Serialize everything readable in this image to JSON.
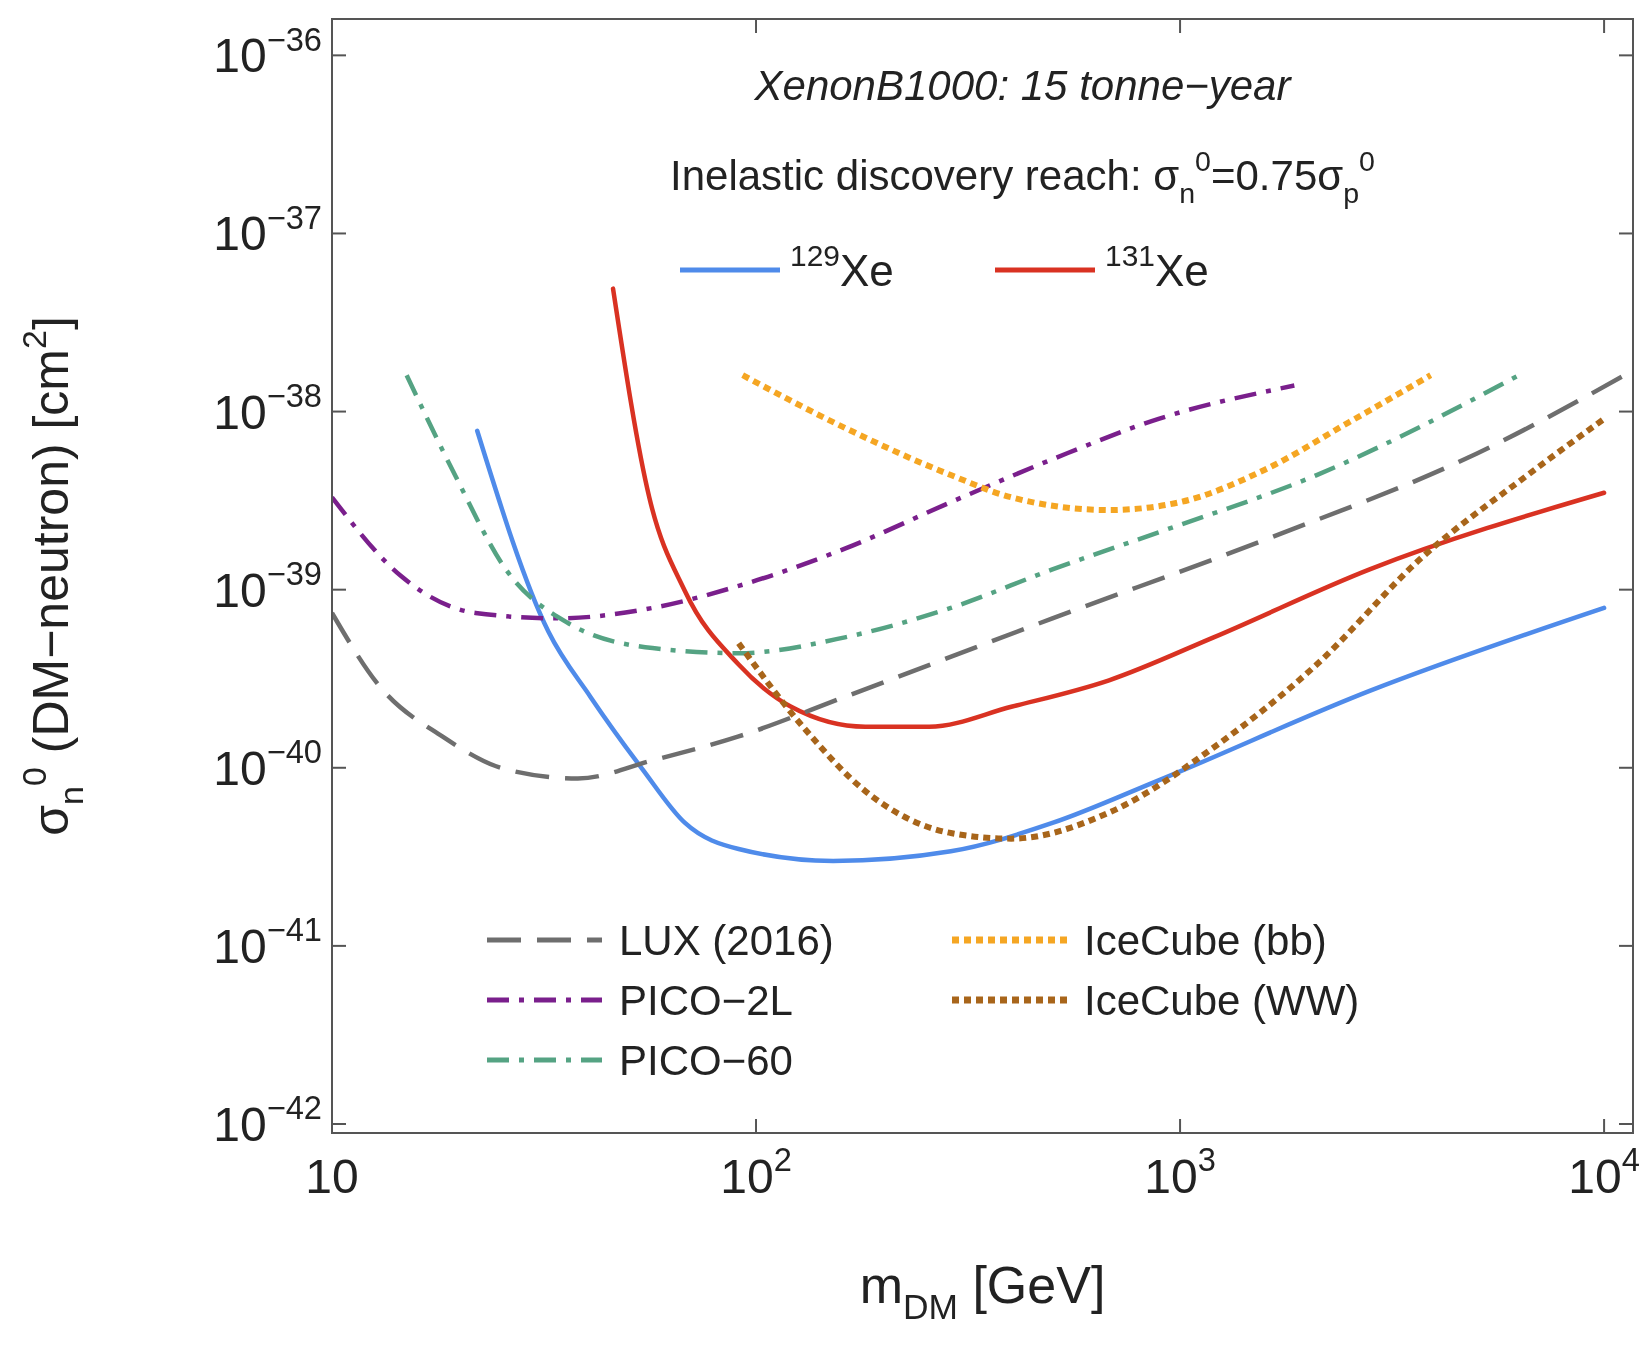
{
  "chart_data": {
    "type": "line",
    "title": "XenonB1000: 15 tonne−year",
    "subtitle": "Inelastic discovery reach: σ$_{n}$$^{0}$=0.75σ$_{p}$$^{0}$",
    "xlabel": "m$_{DM}$ [GeV]",
    "ylabel": "σ$_{n}$$^{0}$ (DM−neutron) [cm$^{2}$]",
    "log": "xy",
    "xlim": [
      10,
      11700
    ],
    "ylim": [
      8.9e-43,
      1.6e-36
    ],
    "xticks": [
      {
        "value": 10,
        "label": "10"
      },
      {
        "value": 100,
        "label": "10$^{2}$"
      },
      {
        "value": 1000,
        "label": "10$^{3}$"
      },
      {
        "value": 10000,
        "label": "10$^{4}$"
      }
    ],
    "yticks": [
      {
        "value": 1e-42,
        "label": "10$^{−42}$"
      },
      {
        "value": 1e-41,
        "label": "10$^{−41}$"
      },
      {
        "value": 1e-40,
        "label": "10$^{−40}$"
      },
      {
        "value": 1e-39,
        "label": "10$^{−39}$"
      },
      {
        "value": 1e-38,
        "label": "10$^{−38}$"
      },
      {
        "value": 1e-37,
        "label": "10$^{−37}$"
      },
      {
        "value": 1e-36,
        "label": "10$^{−36}$"
      }
    ],
    "legend": "bottom left",
    "grid": false,
    "series": [
      {
        "name": "$^{129}$Xe",
        "color": "#4f8bea",
        "line_style": "solid",
        "x": [
          22,
          32.4,
          40.7,
          54,
          68,
          91,
          152,
          288,
          500,
          890,
          2800,
          10000
        ],
        "values": [
          7.8e-39,
          5.8e-40,
          2.5e-40,
          9.8e-41,
          4.9e-41,
          3.5e-41,
          3e-41,
          3.4e-41,
          4.9e-41,
          8.5e-41,
          2.7e-40,
          7.9e-40
        ]
      },
      {
        "name": "$^{131}$Xe",
        "color": "#d93222",
        "line_style": "solid",
        "x": [
          46,
          56,
          68,
          91,
          121,
          181,
          256,
          400,
          680,
          1200,
          2800,
          10000
        ],
        "values": [
          4.9e-38,
          3.3e-39,
          9.8e-40,
          3.8e-40,
          2.2e-40,
          1.7e-40,
          1.7e-40,
          2.2e-40,
          3.1e-40,
          5.4e-40,
          1.3e-39,
          3.5e-39
        ]
      },
      {
        "name": "LUX (2016)",
        "color": "#6e6e6e",
        "line_style": "dashed",
        "x": [
          10,
          12.9,
          18.2,
          25.7,
          38,
          57,
          91,
          162,
          500,
          1580,
          5000,
          11700
        ],
        "values": [
          7.4e-40,
          2.9e-40,
          1.5e-40,
          9.8e-41,
          8.7e-41,
          1.1e-40,
          1.5e-40,
          2.5e-40,
          6.9e-40,
          1.9e-39,
          5.8e-39,
          1.7e-38
        ]
      },
      {
        "name": "PICO−2L",
        "color": "#7a1f8c",
        "line_style": "dashdot",
        "x": [
          10,
          14.5,
          21.8,
          34,
          57,
          91,
          162,
          288,
          500,
          890,
          1860
        ],
        "values": [
          3.3e-39,
          1.2e-39,
          7.4e-40,
          6.9e-40,
          7.9e-40,
          1.05e-39,
          1.7e-39,
          3.1e-39,
          5.4e-39,
          9.1e-39,
          1.4e-38
        ]
      },
      {
        "name": "PICO−60",
        "color": "#55a383",
        "line_style": "dashdot",
        "x": [
          15,
          19.5,
          25.7,
          36,
          57,
          91,
          162,
          288,
          500,
          890,
          2100,
          6300
        ],
        "values": [
          1.6e-38,
          4.4e-39,
          1.3e-39,
          6.5e-40,
          4.7e-40,
          4.4e-40,
          5.4e-40,
          7.9e-40,
          1.3e-39,
          2.1e-39,
          4.4e-39,
          1.6e-38
        ]
      },
      {
        "name": "IceCube (bb)",
        "color": "#f5a623",
        "line_style": "dotted",
        "x": [
          93,
          162,
          288,
          400,
          680,
          1000,
          1580,
          2500,
          3900
        ],
        "values": [
          1.6e-38,
          8.1e-39,
          4.4e-39,
          3.3e-39,
          2.8e-39,
          3.1e-39,
          4.7e-39,
          8.7e-39,
          1.6e-38
        ]
      },
      {
        "name": "IceCube (WW)",
        "color": "#a8651a",
        "line_style": "dotted",
        "x": [
          91,
          129,
          181,
          288,
          400,
          680,
          1200,
          2100,
          3700,
          6600,
          10000
        ],
        "values": [
          5e-40,
          1.7e-40,
          7.4e-41,
          4.3e-41,
          4e-41,
          5.6e-41,
          1.3e-40,
          3.8e-40,
          1.5e-39,
          4.4e-39,
          9.1e-39
        ]
      }
    ]
  }
}
